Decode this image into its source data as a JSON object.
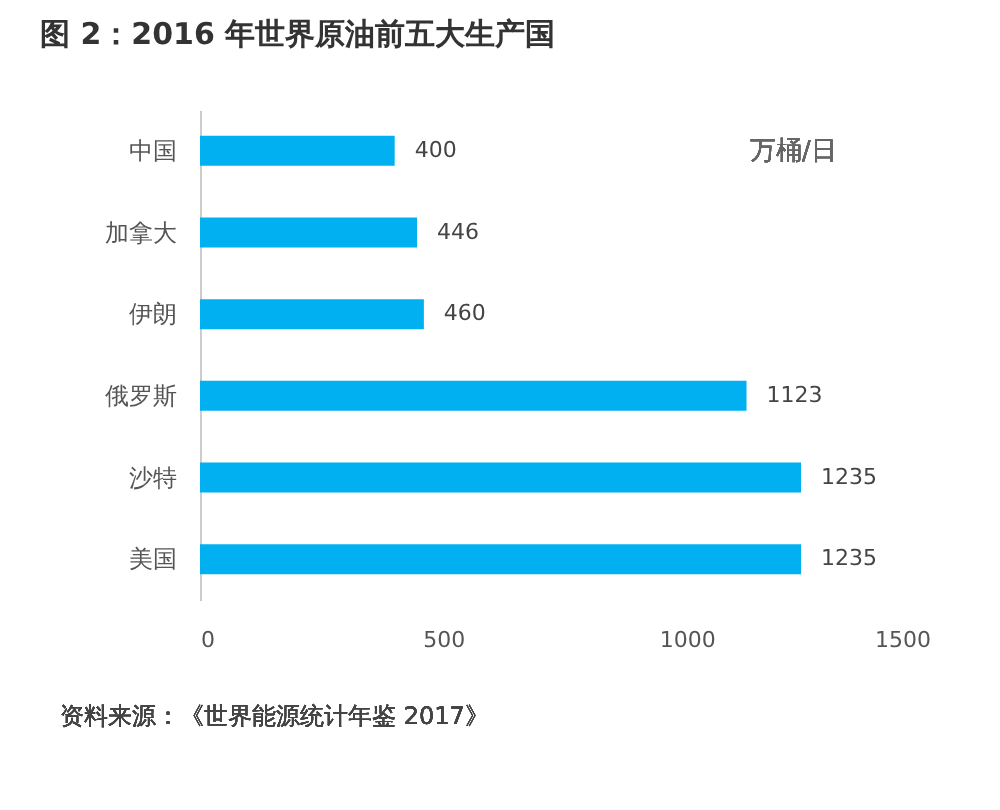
{
  "chart_data": {
    "type": "bar",
    "orientation": "horizontal",
    "title": "图 2：2016 年世界原油前五大生产国",
    "categories": [
      "中国",
      "加拿大",
      "伊朗",
      "俄罗斯",
      "沙特",
      "美国"
    ],
    "values": [
      400,
      446,
      460,
      1123,
      1235,
      1235
    ],
    "color": "#00b0f0",
    "xlim": [
      0,
      1500
    ],
    "xticks": [
      0,
      500,
      1000,
      1500
    ],
    "grid": false,
    "data_labels": true,
    "annotations": [
      "万桶/日",
      "资料来源：《世界能源统计年鉴 2017》"
    ]
  }
}
